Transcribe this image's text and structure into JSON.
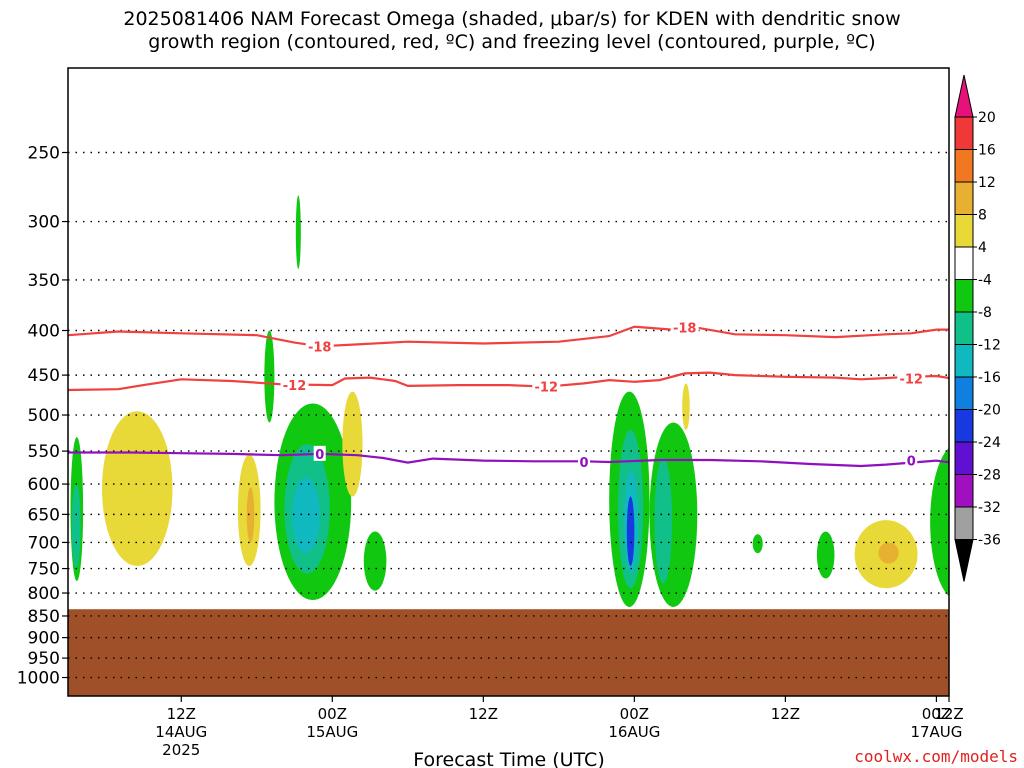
{
  "chart_data": {
    "type": "heatmap",
    "title_line1": "2025081406 NAM Forecast Omega (shaded, μbar/s) for KDEN with dendritic snow",
    "title_line2": "growth region (contoured, red, ºC) and freezing level (contoured, purple, ºC)",
    "xlabel": "Forecast Time (UTC)",
    "ylabel": "",
    "y_scale": "log",
    "y_reversed": true,
    "ylim": [
      1050,
      200
    ],
    "y_ticks": [
      "250",
      "300",
      "350",
      "400",
      "450",
      "500",
      "550",
      "600",
      "650",
      "700",
      "750",
      "800",
      "850",
      "900",
      "950",
      "1000"
    ],
    "y_tick_values": [
      250,
      300,
      350,
      400,
      450,
      500,
      550,
      600,
      650,
      700,
      750,
      800,
      850,
      900,
      950,
      1000
    ],
    "xlim_hours": [
      -3,
      67
    ],
    "x_ticks": [
      {
        "hour": 6,
        "line1": "12Z",
        "line2": "14AUG",
        "line3": "2025"
      },
      {
        "hour": 18,
        "line1": "00Z",
        "line2": "15AUG",
        "line3": ""
      },
      {
        "hour": 30,
        "line1": "12Z",
        "line2": "",
        "line3": ""
      },
      {
        "hour": 42,
        "line1": "00Z",
        "line2": "16AUG",
        "line3": ""
      },
      {
        "hour": 54,
        "line1": "12Z",
        "line2": "",
        "line3": ""
      },
      {
        "hour": 66,
        "line1": "00Z",
        "line2": "17AUG",
        "line3": ""
      },
      {
        "hour": 78,
        "line1": "12Z",
        "line2": "",
        "line3": ""
      }
    ],
    "grid": "dotted horizontal at each pressure level",
    "colorbar": {
      "labels": [
        "20",
        "16",
        "12",
        "8",
        "4",
        "-4",
        "-8",
        "-12",
        "-16",
        "-20",
        "-24",
        "-28",
        "-32",
        "-36"
      ],
      "colors": [
        "#f03838",
        "#f07820",
        "#e8b030",
        "#e8d838",
        "#ffffff",
        "#10c810",
        "#10c088",
        "#10b8c0",
        "#1080e0",
        "#1838e0",
        "#6010d0",
        "#a010c0",
        "#a0a0a0"
      ],
      "top_triangle_color": "#e8107a",
      "bottom_triangle_color": "#000000"
    },
    "terrain": {
      "color": "#a05028",
      "top_pressure": 835
    },
    "contours": [
      {
        "label": "-18",
        "color": "#f04040",
        "points": [
          [
            -3,
            405
          ],
          [
            1,
            401
          ],
          [
            6,
            403
          ],
          [
            12,
            405
          ],
          [
            15,
            413
          ],
          [
            17,
            417
          ],
          [
            20,
            415
          ],
          [
            24,
            412
          ],
          [
            30,
            414
          ],
          [
            36,
            412
          ],
          [
            40,
            406
          ],
          [
            42,
            396
          ],
          [
            45,
            399
          ],
          [
            47,
            397
          ],
          [
            50,
            404
          ],
          [
            54,
            405
          ],
          [
            58,
            407
          ],
          [
            62,
            404
          ],
          [
            64,
            403
          ],
          [
            66,
            399
          ],
          [
            68,
            399
          ],
          [
            70,
            396
          ],
          [
            72,
            404
          ],
          [
            75,
            405
          ],
          [
            78,
            402
          ],
          [
            80,
            398
          ],
          [
            82,
            404
          ],
          [
            85,
            406
          ],
          [
            88,
            408
          ]
        ],
        "labels_at": [
          [
            17,
            417
          ],
          [
            46,
            397
          ],
          [
            72,
            404
          ]
        ]
      },
      {
        "label": "-12",
        "color": "#f04040",
        "points": [
          [
            -3,
            468
          ],
          [
            1,
            467
          ],
          [
            3,
            462
          ],
          [
            6,
            455
          ],
          [
            10,
            457
          ],
          [
            14,
            461
          ],
          [
            18,
            462
          ],
          [
            19,
            454
          ],
          [
            21,
            453
          ],
          [
            23,
            457
          ],
          [
            24,
            463
          ],
          [
            28,
            462
          ],
          [
            32,
            462
          ],
          [
            35,
            464
          ],
          [
            38,
            460
          ],
          [
            40,
            456
          ],
          [
            42,
            458
          ],
          [
            44,
            456
          ],
          [
            46,
            448
          ],
          [
            48,
            447
          ],
          [
            50,
            450
          ],
          [
            54,
            452
          ],
          [
            58,
            453
          ],
          [
            60,
            455
          ],
          [
            64,
            452
          ],
          [
            66,
            451
          ],
          [
            68,
            456
          ],
          [
            70,
            449
          ],
          [
            72,
            448
          ],
          [
            74,
            451
          ],
          [
            76,
            458
          ],
          [
            78,
            462
          ],
          [
            80,
            460
          ],
          [
            84,
            461
          ],
          [
            88,
            461
          ]
        ],
        "labels_at": [
          [
            15,
            462
          ],
          [
            35,
            464
          ],
          [
            64,
            454
          ]
        ]
      },
      {
        "label": "0",
        "color": "#9010c0",
        "points": [
          [
            -3,
            552
          ],
          [
            2,
            552
          ],
          [
            6,
            553
          ],
          [
            10,
            554
          ],
          [
            14,
            556
          ],
          [
            17,
            554
          ],
          [
            20,
            556
          ],
          [
            22,
            560
          ],
          [
            24,
            567
          ],
          [
            26,
            561
          ],
          [
            30,
            564
          ],
          [
            34,
            565
          ],
          [
            38,
            565
          ],
          [
            40,
            566
          ],
          [
            44,
            563
          ],
          [
            48,
            563
          ],
          [
            52,
            565
          ],
          [
            56,
            569
          ],
          [
            60,
            572
          ],
          [
            62,
            570
          ],
          [
            64,
            567
          ],
          [
            66,
            564
          ],
          [
            68,
            569
          ],
          [
            70,
            573
          ],
          [
            74,
            570
          ],
          [
            78,
            569
          ],
          [
            82,
            573
          ],
          [
            88,
            578
          ]
        ],
        "labels_at": [
          [
            17,
            554
          ],
          [
            38,
            566
          ],
          [
            64,
            564
          ]
        ]
      }
    ],
    "shaded_cells": [
      {
        "x": [
          -2.8,
          -1.8
        ],
        "p": [
          530,
          775
        ],
        "value": -6
      },
      {
        "x": [
          -2.7,
          -2.0
        ],
        "p": [
          600,
          750
        ],
        "value": -10
      },
      {
        "x": [
          -0.3,
          5.3
        ],
        "p": [
          495,
          745
        ],
        "value": 6
      },
      {
        "x": [
          10.5,
          12.3
        ],
        "p": [
          555,
          745
        ],
        "value": 6
      },
      {
        "x": [
          11.2,
          11.8
        ],
        "p": [
          605,
          700
        ],
        "value": 10
      },
      {
        "x": [
          15.1,
          15.5
        ],
        "p": [
          280,
          340
        ],
        "value": -6
      },
      {
        "x": [
          12.6,
          13.4
        ],
        "p": [
          400,
          510
        ],
        "value": -6
      },
      {
        "x": [
          13.4,
          19.5
        ],
        "p": [
          485,
          815
        ],
        "value": -6
      },
      {
        "x": [
          14.2,
          17.8
        ],
        "p": [
          540,
          760
        ],
        "value": -10
      },
      {
        "x": [
          14.8,
          17.0
        ],
        "p": [
          590,
          720
        ],
        "value": -14
      },
      {
        "x": [
          18.8,
          20.4
        ],
        "p": [
          470,
          620
        ],
        "value": 6
      },
      {
        "x": [
          20.5,
          22.3
        ],
        "p": [
          680,
          795
        ],
        "value": -6
      },
      {
        "x": [
          40.0,
          43.2
        ],
        "p": [
          470,
          830
        ],
        "value": -6
      },
      {
        "x": [
          40.7,
          42.7
        ],
        "p": [
          520,
          790
        ],
        "value": -10
      },
      {
        "x": [
          41.2,
          42.3
        ],
        "p": [
          580,
          760
        ],
        "value": -14
      },
      {
        "x": [
          41.4,
          42.0
        ],
        "p": [
          620,
          745
        ],
        "value": -22
      },
      {
        "x": [
          43.2,
          47.0
        ],
        "p": [
          510,
          830
        ],
        "value": -6
      },
      {
        "x": [
          43.6,
          45.0
        ],
        "p": [
          560,
          780
        ],
        "value": -10
      },
      {
        "x": [
          45.8,
          46.4
        ],
        "p": [
          460,
          520
        ],
        "value": 6
      },
      {
        "x": [
          51.4,
          52.2
        ],
        "p": [
          685,
          720
        ],
        "value": -6
      },
      {
        "x": [
          56.5,
          57.9
        ],
        "p": [
          680,
          770
        ],
        "value": -6
      },
      {
        "x": [
          59.5,
          64.5
        ],
        "p": [
          660,
          790
        ],
        "value": 6
      },
      {
        "x": [
          61.4,
          63.0
        ],
        "p": [
          700,
          740
        ],
        "value": 10
      },
      {
        "x": [
          65.5,
          69.8
        ],
        "p": [
          540,
          815
        ],
        "value": -6
      },
      {
        "x": [
          67.5,
          69.4
        ],
        "p": [
          620,
          800
        ],
        "value": -10
      },
      {
        "x": [
          72.7,
          74.6
        ],
        "p": [
          590,
          675
        ],
        "value": 6
      }
    ]
  },
  "credit": "coolwx.com/models"
}
